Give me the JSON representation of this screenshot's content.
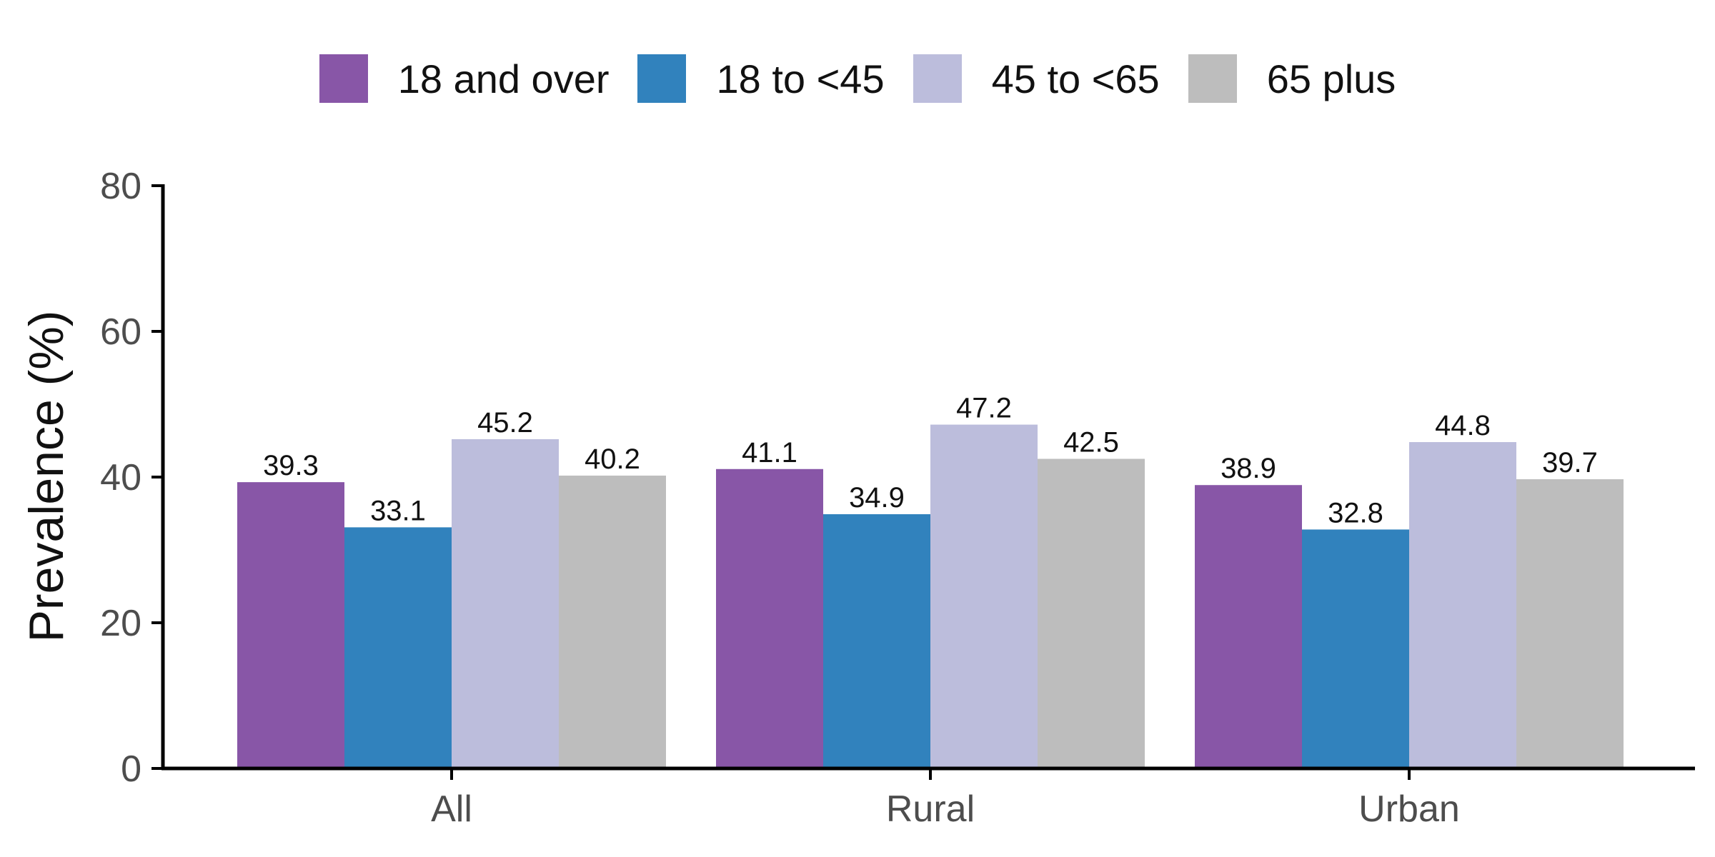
{
  "chart_data": {
    "type": "bar",
    "title": "",
    "xlabel": "",
    "ylabel": "Prevalence (%)",
    "ylim": [
      0,
      80
    ],
    "yticks": [
      0,
      20,
      40,
      60,
      80
    ],
    "categories": [
      "All",
      "Rural",
      "Urban"
    ],
    "series": [
      {
        "name": "18 and over",
        "color": "#8856a7",
        "values": [
          39.3,
          41.1,
          38.9
        ],
        "labels": [
          "39.3",
          "41.1",
          "38.9"
        ]
      },
      {
        "name": "18 to <45",
        "color": "#3182bd",
        "values": [
          33.1,
          34.9,
          32.8
        ],
        "labels": [
          "33.1",
          "34.9",
          "32.8"
        ]
      },
      {
        "name": "45 to <65",
        "color": "#bcbddc",
        "values": [
          45.2,
          47.2,
          44.8
        ],
        "labels": [
          "45.2",
          "47.2",
          "44.8"
        ]
      },
      {
        "name": "65 plus",
        "color": "#bdbdbd",
        "values": [
          40.2,
          42.5,
          39.7
        ],
        "labels": [
          "40.2",
          "42.5",
          "39.7"
        ]
      }
    ],
    "legend_position": "top",
    "grid": false
  }
}
